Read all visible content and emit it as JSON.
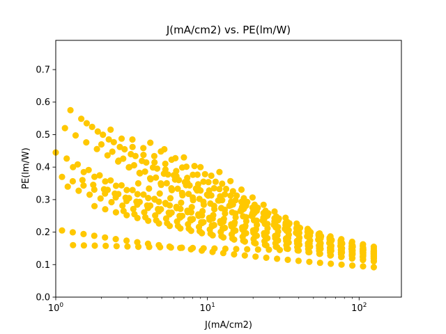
{
  "chart_data": {
    "type": "scatter",
    "title": "J(mA/cm2) vs. PE(lm/W)",
    "xlabel": "J(mA/cm2)",
    "ylabel": "PE(lm/W)",
    "x_scale": "log",
    "xlim": [
      1,
      190
    ],
    "ylim": [
      0,
      0.79
    ],
    "grid": false,
    "legend": "none",
    "point_color": "#ffc800",
    "x_ticks": [
      {
        "value": 1,
        "base": "10",
        "exp": "0"
      },
      {
        "value": 10,
        "base": "10",
        "exp": "1"
      },
      {
        "value": 100,
        "base": "10",
        "exp": "2"
      }
    ],
    "y_ticks": [
      {
        "value": 0.0,
        "label": "0.0"
      },
      {
        "value": 0.1,
        "label": "0.1"
      },
      {
        "value": 0.2,
        "label": "0.2"
      },
      {
        "value": 0.3,
        "label": "0.3"
      },
      {
        "value": 0.4,
        "label": "0.4"
      },
      {
        "value": 0.5,
        "label": "0.5"
      },
      {
        "value": 0.6,
        "label": "0.6"
      },
      {
        "value": 0.7,
        "label": "0.7"
      }
    ],
    "curves_note": "points sampled along visible families of curves",
    "families": [
      {
        "j_start": 1.0,
        "pe_start": 0.445,
        "j_end": 125,
        "pe_end": 0.128
      },
      {
        "j_start": 1.1,
        "pe_start": 0.205,
        "j_end": 125,
        "pe_end": 0.092
      },
      {
        "j_start": 1.15,
        "pe_start": 0.52,
        "j_end": 125,
        "pe_end": 0.145
      },
      {
        "j_start": 1.25,
        "pe_start": 0.575,
        "j_end": 125,
        "pe_end": 0.155
      },
      {
        "j_start": 1.3,
        "pe_start": 0.16,
        "j_end": 30,
        "pe_end": 0.145
      },
      {
        "j_start": 1.6,
        "pe_start": 0.535,
        "j_end": 125,
        "pe_end": 0.15
      },
      {
        "j_start": 2.3,
        "pe_start": 0.515,
        "j_end": 125,
        "pe_end": 0.14
      },
      {
        "j_start": 1.3,
        "pe_start": 0.4,
        "j_end": 125,
        "pe_end": 0.135
      },
      {
        "j_start": 1.1,
        "pe_start": 0.37,
        "j_end": 125,
        "pe_end": 0.125
      },
      {
        "j_start": 1.2,
        "pe_start": 0.34,
        "j_end": 125,
        "pe_end": 0.118
      },
      {
        "j_start": 1.5,
        "pe_start": 0.36,
        "j_end": 125,
        "pe_end": 0.12
      },
      {
        "j_start": 1.8,
        "pe_start": 0.28,
        "j_end": 125,
        "pe_end": 0.112
      },
      {
        "j_start": 2.0,
        "pe_start": 0.47,
        "j_end": 125,
        "pe_end": 0.138
      },
      {
        "j_start": 2.2,
        "pe_start": 0.33,
        "j_end": 125,
        "pe_end": 0.122
      },
      {
        "j_start": 3.2,
        "pe_start": 0.485,
        "j_end": 125,
        "pe_end": 0.142
      },
      {
        "j_start": 4.2,
        "pe_start": 0.475,
        "j_end": 125,
        "pe_end": 0.14
      },
      {
        "j_start": 5.2,
        "pe_start": 0.455,
        "j_end": 125,
        "pe_end": 0.138
      },
      {
        "j_start": 7.0,
        "pe_start": 0.43,
        "j_end": 125,
        "pe_end": 0.136
      },
      {
        "j_start": 2.6,
        "pe_start": 0.42,
        "j_end": 125,
        "pe_end": 0.13
      },
      {
        "j_start": 3.5,
        "pe_start": 0.35,
        "j_end": 125,
        "pe_end": 0.125
      },
      {
        "j_start": 2.8,
        "pe_start": 0.265,
        "j_end": 125,
        "pe_end": 0.11
      },
      {
        "j_start": 4.5,
        "pe_start": 0.3,
        "j_end": 125,
        "pe_end": 0.12
      },
      {
        "j_start": 6.0,
        "pe_start": 0.375,
        "j_end": 125,
        "pe_end": 0.132
      },
      {
        "j_start": 9.0,
        "pe_start": 0.4,
        "j_end": 125,
        "pe_end": 0.134
      },
      {
        "j_start": 12.0,
        "pe_start": 0.385,
        "j_end": 125,
        "pe_end": 0.133
      }
    ]
  }
}
